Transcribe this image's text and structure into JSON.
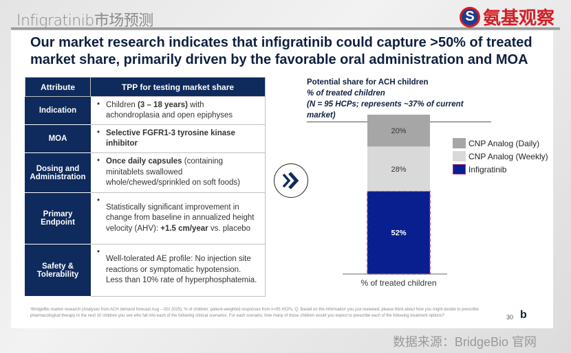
{
  "header": {
    "top_title": "Infigratinib市场预测",
    "logo_text": "氨基观察",
    "logo_mark": "S"
  },
  "headline": "Our market research indicates that infigratinib could capture >50% of treated market share, primarily driven by the favorable oral administration and MOA",
  "table": {
    "headers": [
      "Attribute",
      "TPP for testing market share"
    ],
    "rows": [
      {
        "attr": "Indication",
        "pre": "Children ",
        "bold": "(3 – 18 years)",
        "post": " with achondroplasia and open epiphyses"
      },
      {
        "attr": "MOA",
        "pre": "",
        "bold": "Selective FGFR1-3 tyrosine kinase inhibitor",
        "post": ""
      },
      {
        "attr": "Dosing and Administration",
        "pre": "",
        "bold": "Once daily capsules",
        "post": " (containing minitablets swallowed whole/chewed/sprinkled on soft foods)"
      },
      {
        "attr": "Primary Endpoint",
        "pre": "Statistically significant improvement in change from baseline in annualized height velocity (AHV): ",
        "bold": "+1.5 cm/year",
        "post": " vs. placebo"
      },
      {
        "attr": "Safety & Tolerability",
        "pre": "Well-tolerated AE profile: No injection site reactions or symptomatic hypotension. Less than 10% rate of hyperphosphatemia.",
        "bold": "",
        "post": ""
      }
    ]
  },
  "arrow_icon": "double-chevron-right",
  "chart_data": {
    "type": "bar",
    "stacked": true,
    "title": "Potential share for ACH children",
    "subtitle": "% of treated children",
    "note": "(N = 95 HCPs; represents ~37% of current market)",
    "categories": [
      "% of treated children"
    ],
    "xlabel": "% of treated children",
    "ylim": [
      0,
      100
    ],
    "legend_position": "right",
    "series": [
      {
        "name": "Infigratinib",
        "values": [
          52
        ],
        "label": "52%",
        "color": "#0a1f8f"
      },
      {
        "name": "CNP Analog (Weekly)",
        "values": [
          28
        ],
        "label": "28%",
        "color": "#d9d9d9"
      },
      {
        "name": "CNP Analog (Daily)",
        "values": [
          20
        ],
        "label": "20%",
        "color": "#a6a6a6"
      }
    ],
    "legend": [
      "CNP Analog (Daily)",
      "CNP Analog (Weekly)",
      "Infigratinib"
    ]
  },
  "footnote": "¹BridgeBio market research (Analyses from ACH demand forecast Aug – Oct 2025); % of children; patient-weighted responses from n=95 HCPs; Q: Based on the information you just reviewed, please think about how you might decide to prescribe pharmacological therapy to the next 10 children you see who fall into each of the following clinical scenarios. For each scenario, how many of those children would you expect to prescribe each of the following treatment options?",
  "page_number": "30",
  "brand_mark": "b",
  "source": "数据来源：BridgeBio 官网"
}
